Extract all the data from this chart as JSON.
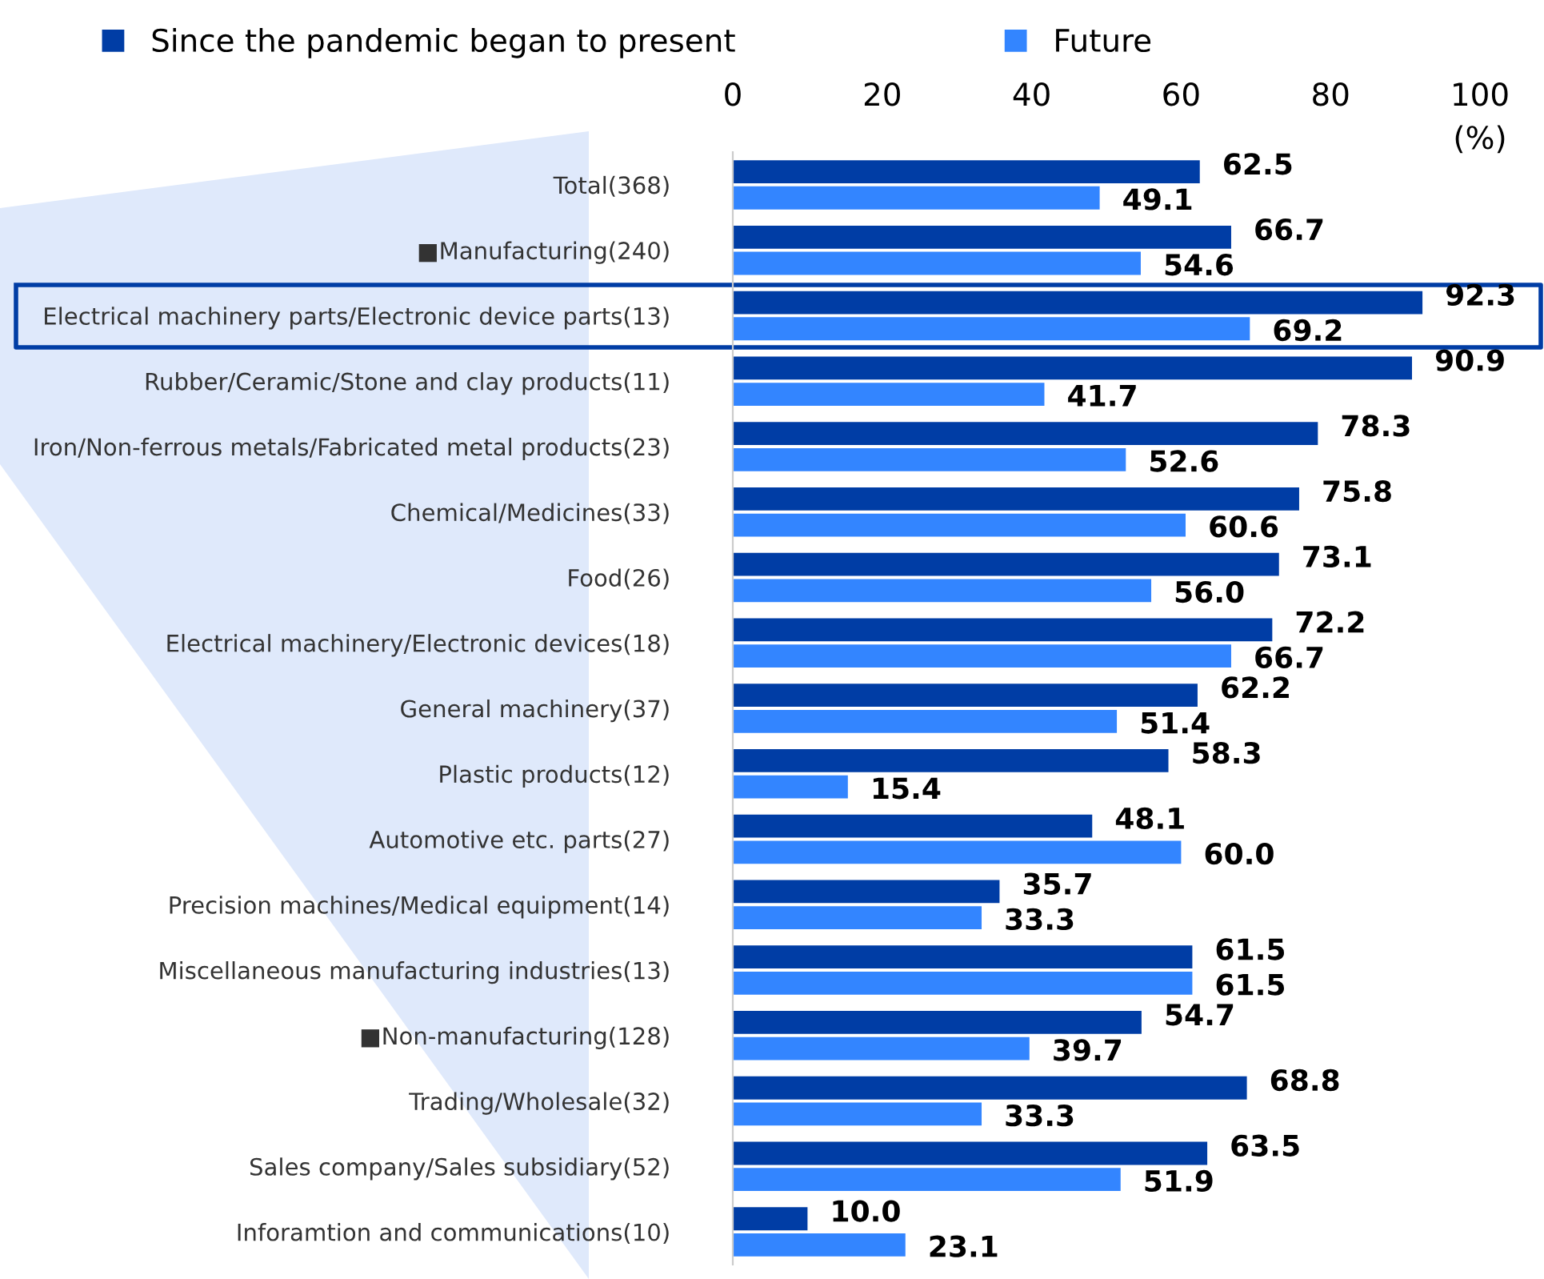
{
  "chart_data": {
    "type": "bar",
    "orientation": "horizontal",
    "xlabel": "(%)",
    "categories": [
      "Total(368)",
      "■Manufacturing(240)",
      "Electrical machinery parts/Electronic device parts(13)",
      "Rubber/Ceramic/Stone and clay products(11)",
      "Iron/Non-ferrous metals/Fabricated metal products(23)",
      "Chemical/Medicines(33)",
      "Food(26)",
      "Electrical machinery/Electronic devices(18)",
      "General machinery(37)",
      "Plastic products(12)",
      "Automotive etc. parts(27)",
      "Precision machines/Medical equipment(14)",
      "Miscellaneous manufacturing industries(13)",
      "■Non-manufacturing(128)",
      "Trading/Wholesale(32)",
      "Sales company/Sales subsidiary(52)",
      "Inforamtion and communications(10)"
    ],
    "series": [
      {
        "name": "Since the pandemic began to present",
        "color": "#003da5",
        "values": [
          62.5,
          66.7,
          92.3,
          90.9,
          78.3,
          75.8,
          73.1,
          72.2,
          62.2,
          58.3,
          48.1,
          35.7,
          61.5,
          54.7,
          68.8,
          63.5,
          10.0
        ],
        "value_labels": [
          "62.5",
          "66.7",
          "92.3",
          "90.9",
          "78.3",
          "75.8",
          "73.1",
          "72.2",
          "62.2",
          "58.3",
          "48.1",
          "35.7",
          "61.5",
          "54.7",
          "68.8",
          "63.5",
          "10.0"
        ]
      },
      {
        "name": "Future",
        "color": "#3385ff",
        "values": [
          49.1,
          54.6,
          69.2,
          41.7,
          52.6,
          60.6,
          56.0,
          66.7,
          51.4,
          15.4,
          60.0,
          33.3,
          61.5,
          39.7,
          33.3,
          51.9,
          23.1
        ],
        "value_labels": [
          "49.1",
          "54.6",
          "69.2",
          "41.7",
          "52.6",
          "60.6",
          "56.0",
          "66.7",
          "51.4",
          "15.4",
          "60.0",
          "33.3",
          "61.5",
          "39.7",
          "33.3",
          "51.9",
          "23.1"
        ]
      }
    ],
    "xlim": [
      0,
      100
    ],
    "xticks": [
      0,
      20,
      40,
      60,
      80,
      100
    ],
    "legend": "top",
    "grid": false
  }
}
